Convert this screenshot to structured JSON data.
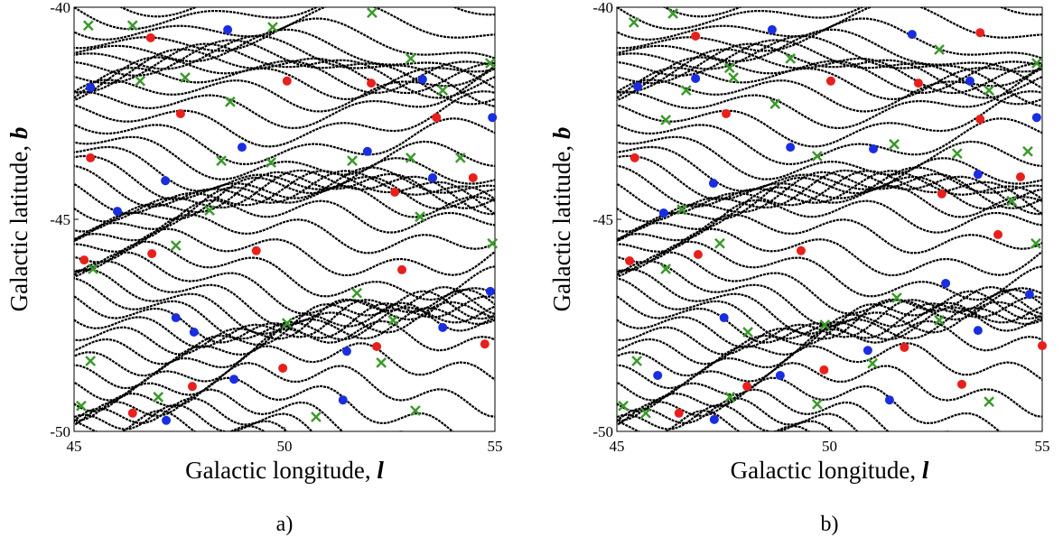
{
  "chart_data": [
    {
      "type": "scatter",
      "panel_label": "a)",
      "x_label": "Galactic longitude, ",
      "x_label_symbol": "l",
      "y_label": "Galactic latitude, ",
      "y_label_symbol": "b",
      "xlim": [
        45,
        55
      ],
      "ylim": [
        -50,
        -40
      ],
      "xticks": [
        45,
        50,
        55
      ],
      "yticks": [
        -50,
        -45,
        -40
      ],
      "series": [
        {
          "color": "#e8201c",
          "marker": "circle",
          "x": [
            46.82,
            50.06,
            52.06,
            47.53,
            45.39,
            53.61,
            52.62,
            54.48,
            49.33,
            46.85,
            45.24,
            52.79,
            52.19,
            49.96,
            47.81,
            46.39,
            54.76
          ],
          "y": [
            -40.72,
            -41.74,
            -41.79,
            -42.51,
            -43.55,
            -42.6,
            -44.36,
            -44.02,
            -45.74,
            -45.81,
            -45.96,
            -46.19,
            -48.0,
            -48.51,
            -48.94,
            -49.57,
            -47.94
          ]
        },
        {
          "color": "#1a2ee0",
          "marker": "circle",
          "x": [
            48.65,
            45.39,
            53.28,
            54.94,
            48.99,
            47.17,
            51.97,
            53.52,
            46.03,
            54.89,
            47.42,
            47.85,
            51.48,
            48.8,
            47.19,
            51.39,
            53.76
          ],
          "y": [
            -40.53,
            -41.89,
            -41.7,
            -42.6,
            -43.3,
            -44.09,
            -43.4,
            -44.02,
            -44.81,
            -46.7,
            -47.32,
            -47.66,
            -48.11,
            -48.77,
            -49.74,
            -49.26,
            -47.55
          ]
        },
        {
          "color": "#3a9a2a",
          "marker": "x",
          "x": [
            45.34,
            46.39,
            49.72,
            52.08,
            53.0,
            54.89,
            46.57,
            47.64,
            48.71,
            53.76,
            48.5,
            49.68,
            51.61,
            53.0,
            54.18,
            48.22,
            53.22,
            54.94,
            47.42,
            45.45,
            51.72,
            50.06,
            52.58,
            45.39,
            52.3,
            47.0,
            45.17,
            50.75,
            53.11
          ],
          "y": [
            -40.43,
            -40.43,
            -40.47,
            -40.13,
            -41.21,
            -41.32,
            -41.74,
            -41.66,
            -42.23,
            -41.96,
            -43.62,
            -43.66,
            -43.62,
            -43.55,
            -43.55,
            -44.79,
            -44.94,
            -45.57,
            -45.62,
            -46.17,
            -46.74,
            -47.45,
            -47.38,
            -48.34,
            -48.38,
            -49.19,
            -49.4,
            -49.66,
            -49.51
          ]
        }
      ]
    },
    {
      "type": "scatter",
      "panel_label": "b)",
      "x_label": "Galactic longitude, ",
      "x_label_symbol": "l",
      "y_label": "Galactic latitude, ",
      "y_label_symbol": "b",
      "xlim": [
        45,
        55
      ],
      "ylim": [
        -50,
        -40
      ],
      "xticks": [
        45,
        50,
        55
      ],
      "yticks": [
        -50,
        -45,
        -40
      ],
      "series": [
        {
          "color": "#e8201c",
          "marker": "circle",
          "x": [
            46.85,
            50.03,
            52.09,
            47.57,
            45.42,
            53.54,
            52.64,
            54.49,
            53.96,
            49.33,
            46.91,
            45.3,
            51.76,
            49.87,
            48.06,
            46.46,
            53.11,
            55.0,
            53.54
          ],
          "y": [
            -40.68,
            -41.74,
            -41.79,
            -42.51,
            -43.55,
            -42.64,
            -44.4,
            -44.0,
            -45.36,
            -45.74,
            -45.83,
            -45.98,
            -48.02,
            -48.55,
            -48.94,
            -49.57,
            -48.89,
            -47.98,
            -40.6
          ]
        },
        {
          "color": "#1a2ee0",
          "marker": "circle",
          "x": [
            48.65,
            45.49,
            46.85,
            53.3,
            54.87,
            49.08,
            51.03,
            47.27,
            53.49,
            46.1,
            52.73,
            54.7,
            47.52,
            50.9,
            53.49,
            48.84,
            45.96,
            51.41,
            47.29,
            51.94
          ],
          "y": [
            -40.53,
            -41.87,
            -41.68,
            -41.74,
            -42.6,
            -43.3,
            -43.34,
            -44.15,
            -43.94,
            -44.85,
            -46.51,
            -46.77,
            -47.32,
            -48.09,
            -47.62,
            -48.68,
            -48.68,
            -49.26,
            -49.72,
            -40.64
          ]
        },
        {
          "color": "#3a9a2a",
          "marker": "x",
          "x": [
            45.4,
            46.32,
            47.65,
            49.08,
            52.58,
            54.87,
            46.63,
            47.74,
            48.72,
            53.75,
            46.15,
            49.71,
            51.52,
            53.0,
            54.66,
            46.53,
            54.28,
            54.85,
            47.42,
            46.15,
            51.58,
            49.89,
            48.08,
            52.58,
            45.47,
            51.01,
            47.66,
            45.68,
            49.71,
            53.75,
            45.15
          ],
          "y": [
            -40.36,
            -40.15,
            -41.43,
            -41.21,
            -41.0,
            -41.32,
            -41.96,
            -41.66,
            -42.28,
            -41.96,
            -42.66,
            -43.51,
            -43.23,
            -43.45,
            -43.4,
            -44.77,
            -44.57,
            -45.57,
            -45.57,
            -46.17,
            -46.85,
            -47.49,
            -47.66,
            -47.38,
            -48.34,
            -48.4,
            -49.19,
            -49.57,
            -49.36,
            -49.3,
            -49.4
          ]
        }
      ]
    }
  ]
}
